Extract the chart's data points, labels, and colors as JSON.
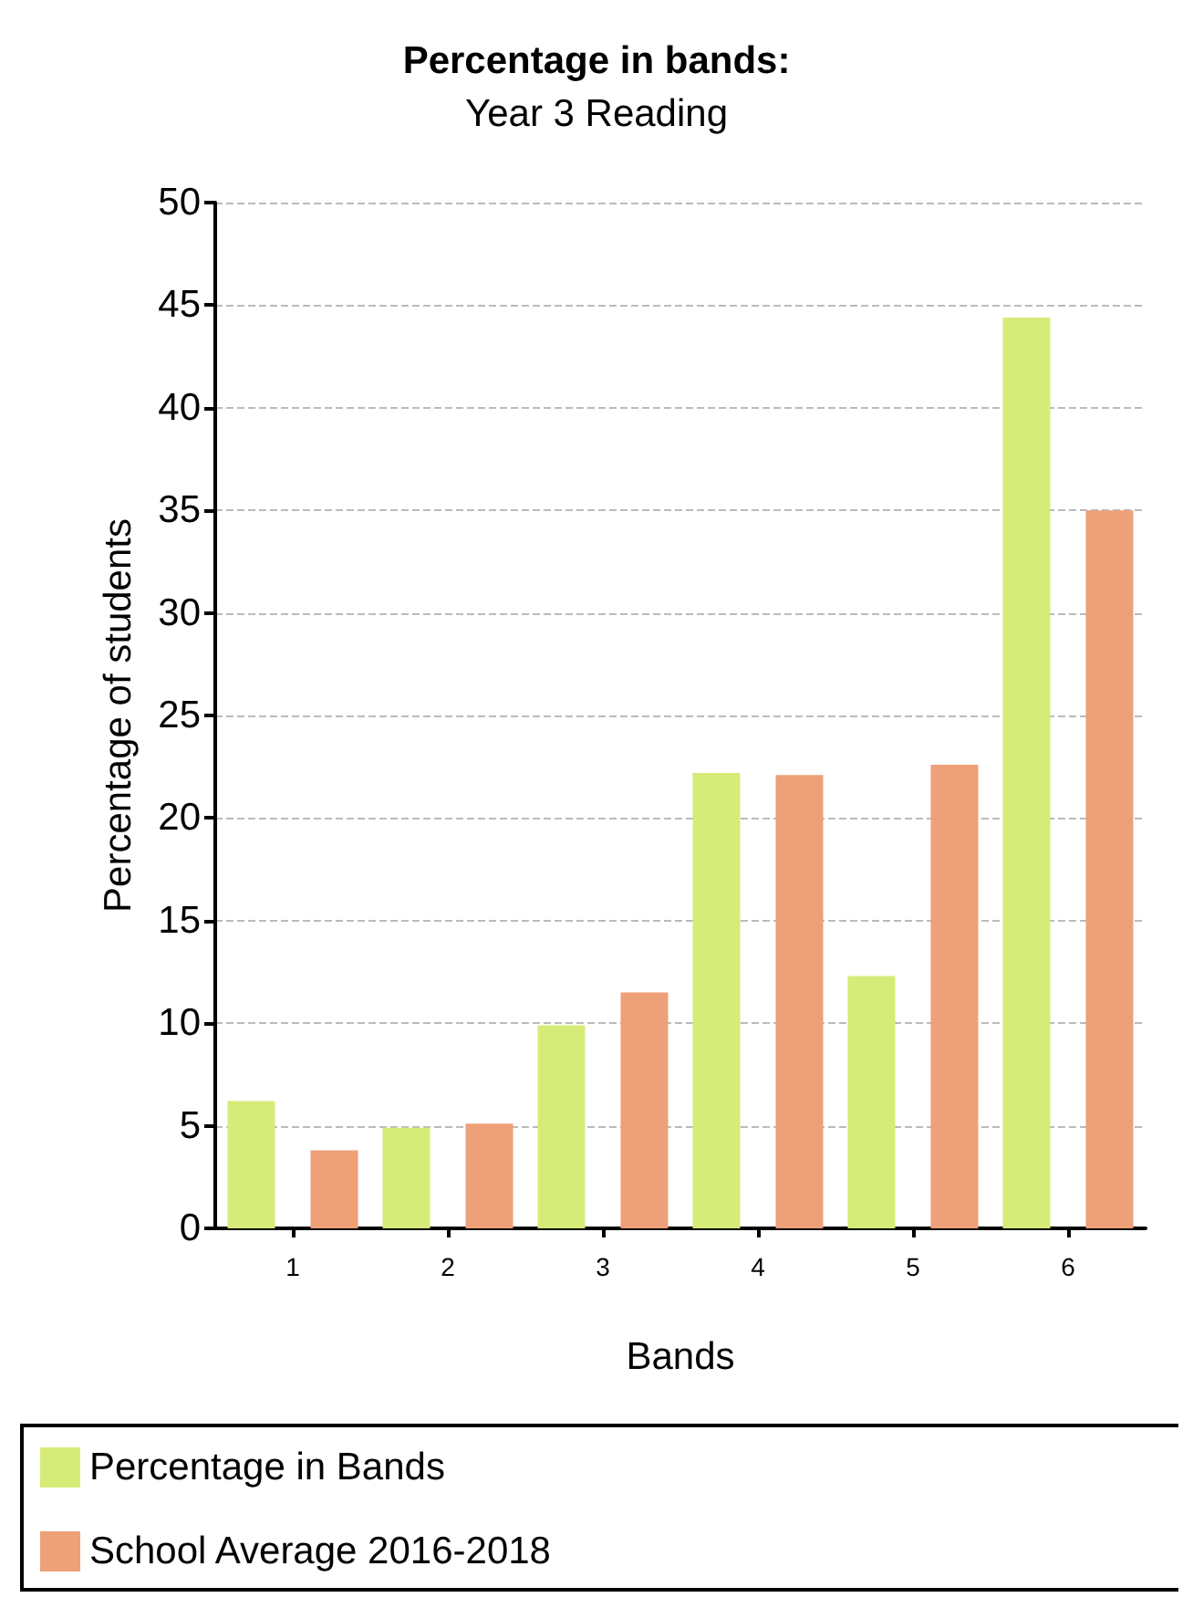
{
  "chart_data": {
    "type": "bar",
    "title": "Percentage in bands:",
    "subtitle": "Year 3 Reading",
    "xlabel": "Bands",
    "ylabel": "Percentage of students",
    "categories": [
      "1",
      "2",
      "3",
      "4",
      "5",
      "6"
    ],
    "series": [
      {
        "name": "Percentage in Bands",
        "color": "#d6ec78",
        "values": [
          6.2,
          4.9,
          9.9,
          22.2,
          12.3,
          44.4
        ]
      },
      {
        "name": "School Average 2016-2018",
        "color": "#eea078",
        "values": [
          3.8,
          5.1,
          11.5,
          22.1,
          22.6,
          35.0
        ]
      }
    ],
    "ylim": [
      0,
      50
    ],
    "yticks": [
      0,
      5,
      10,
      15,
      20,
      25,
      30,
      35,
      40,
      45,
      50
    ],
    "grid": "y",
    "legend": "bottom"
  }
}
